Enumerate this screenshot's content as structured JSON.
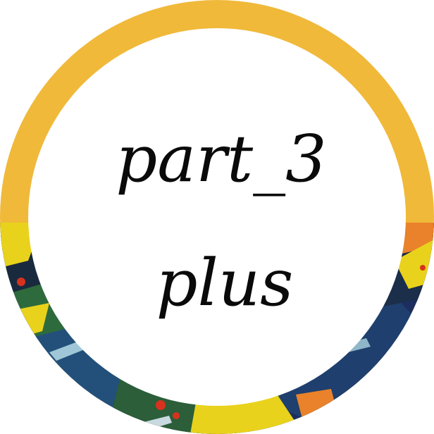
{
  "badge": {
    "line1": "part_3",
    "line2": "plus"
  },
  "colors": {
    "ring": "#F0B93A",
    "inner": "#FFFFFF",
    "text": "#0A0A0A",
    "paint_navy": "#1C2D5E",
    "paint_green": "#2E6B3C",
    "paint_yellow": "#E9D21C",
    "paint_orange": "#E9822A",
    "paint_red": "#D8321E"
  },
  "icons": {
    "background": "abstract-paint-texture"
  }
}
